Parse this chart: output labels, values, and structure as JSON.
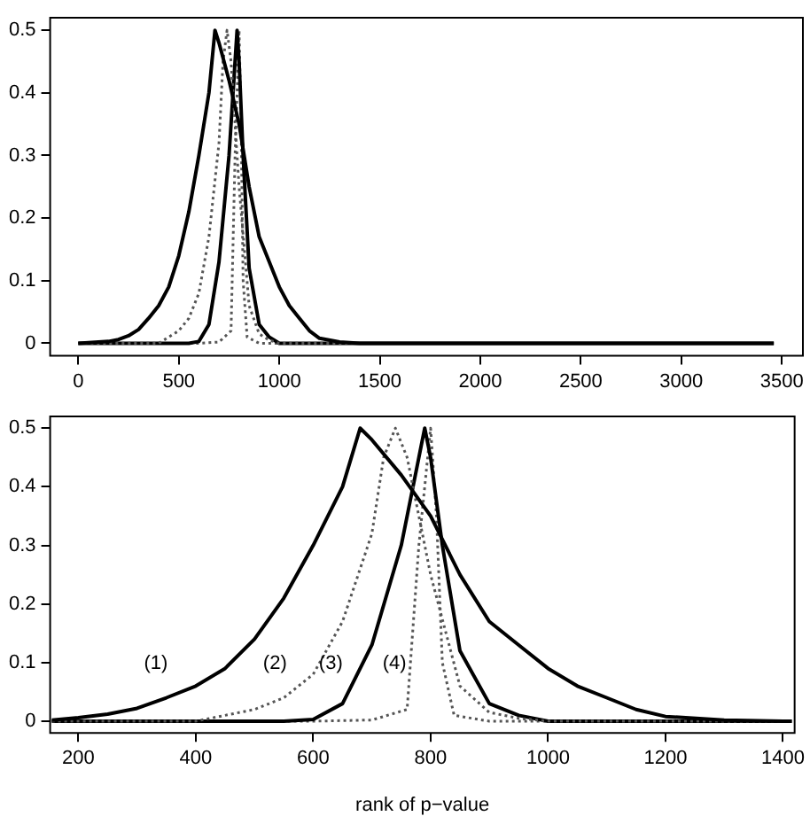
{
  "chart_data": [
    {
      "type": "line",
      "xlim": [
        -140,
        3605
      ],
      "ylim": [
        -0.02,
        0.52
      ],
      "xticks": [
        0,
        500,
        1000,
        1500,
        2000,
        2500,
        3000,
        3500
      ],
      "yticks": [
        0.0,
        0.1,
        0.2,
        0.3,
        0.4,
        0.5
      ],
      "grid": false,
      "legend": false,
      "marker": "none",
      "series": [
        {
          "color": "#000000",
          "line_style": "solid",
          "x": [
            0,
            150,
            200,
            250,
            300,
            350,
            400,
            450,
            500,
            550,
            600,
            650,
            680,
            700,
            750,
            800,
            850,
            900,
            950,
            1000,
            1050,
            1100,
            1150,
            1200,
            1300,
            1400,
            3460
          ],
          "values": [
            0,
            0.003,
            0.006,
            0.012,
            0.022,
            0.04,
            0.06,
            0.09,
            0.14,
            0.21,
            0.3,
            0.4,
            0.5,
            0.48,
            0.42,
            0.35,
            0.25,
            0.17,
            0.13,
            0.09,
            0.06,
            0.04,
            0.02,
            0.008,
            0.002,
            0,
            0
          ]
        },
        {
          "color": "#555555",
          "line_style": "dotted",
          "x": [
            0,
            400,
            500,
            550,
            600,
            650,
            700,
            720,
            740,
            760,
            780,
            800,
            850,
            900,
            950,
            1000,
            3460
          ],
          "values": [
            0,
            0,
            0.02,
            0.04,
            0.08,
            0.17,
            0.32,
            0.45,
            0.5,
            0.45,
            0.35,
            0.25,
            0.06,
            0.015,
            0.005,
            0,
            0
          ]
        },
        {
          "color": "#000000",
          "line_style": "solid",
          "x": [
            0,
            550,
            600,
            650,
            700,
            750,
            780,
            790,
            800,
            820,
            850,
            900,
            950,
            1000,
            3460
          ],
          "values": [
            0,
            0,
            0.003,
            0.03,
            0.13,
            0.3,
            0.45,
            0.5,
            0.45,
            0.3,
            0.12,
            0.03,
            0.01,
            0,
            0
          ]
        },
        {
          "color": "#555555",
          "line_style": "dotted",
          "x": [
            0,
            600,
            700,
            760,
            780,
            800,
            810,
            820,
            840,
            900,
            3460
          ],
          "values": [
            0,
            0,
            0.002,
            0.02,
            0.3,
            0.5,
            0.35,
            0.1,
            0.01,
            0,
            0
          ]
        }
      ]
    },
    {
      "type": "line",
      "xlim": [
        152,
        1420
      ],
      "ylim": [
        -0.02,
        0.52
      ],
      "xticks": [
        200,
        400,
        600,
        800,
        1000,
        1200,
        1400
      ],
      "yticks": [
        0.0,
        0.1,
        0.2,
        0.3,
        0.4,
        0.5
      ],
      "grid": false,
      "legend": false,
      "marker": "none",
      "xlabel": "rank of p−value",
      "annotations": [
        "(1)",
        "(2)",
        "(3)",
        "(4)"
      ],
      "series": [
        {
          "color": "#000000",
          "line_style": "solid",
          "x": [
            155,
            200,
            250,
            300,
            350,
            400,
            450,
            500,
            550,
            600,
            650,
            680,
            700,
            750,
            800,
            850,
            900,
            950,
            1000,
            1050,
            1100,
            1150,
            1200,
            1300,
            1400,
            1415
          ],
          "values": [
            0.002,
            0.006,
            0.012,
            0.022,
            0.04,
            0.06,
            0.09,
            0.14,
            0.21,
            0.3,
            0.4,
            0.5,
            0.48,
            0.42,
            0.35,
            0.25,
            0.17,
            0.13,
            0.09,
            0.06,
            0.04,
            0.02,
            0.008,
            0.002,
            0,
            0
          ]
        },
        {
          "color": "#555555",
          "line_style": "dotted",
          "x": [
            155,
            400,
            500,
            550,
            600,
            650,
            700,
            720,
            740,
            760,
            780,
            800,
            850,
            900,
            950,
            1000,
            1415
          ],
          "values": [
            0,
            0,
            0.02,
            0.04,
            0.08,
            0.17,
            0.32,
            0.45,
            0.5,
            0.45,
            0.35,
            0.25,
            0.06,
            0.015,
            0.005,
            0,
            0
          ]
        },
        {
          "color": "#000000",
          "line_style": "solid",
          "x": [
            155,
            550,
            600,
            650,
            700,
            750,
            780,
            790,
            800,
            820,
            850,
            900,
            950,
            1000,
            1415
          ],
          "values": [
            0,
            0,
            0.003,
            0.03,
            0.13,
            0.3,
            0.45,
            0.5,
            0.45,
            0.3,
            0.12,
            0.03,
            0.01,
            0,
            0
          ]
        },
        {
          "color": "#555555",
          "line_style": "dotted",
          "x": [
            155,
            600,
            700,
            760,
            780,
            800,
            810,
            820,
            840,
            900,
            1415
          ],
          "values": [
            0,
            0,
            0.002,
            0.02,
            0.3,
            0.5,
            0.35,
            0.1,
            0.01,
            0,
            0
          ]
        }
      ]
    }
  ]
}
